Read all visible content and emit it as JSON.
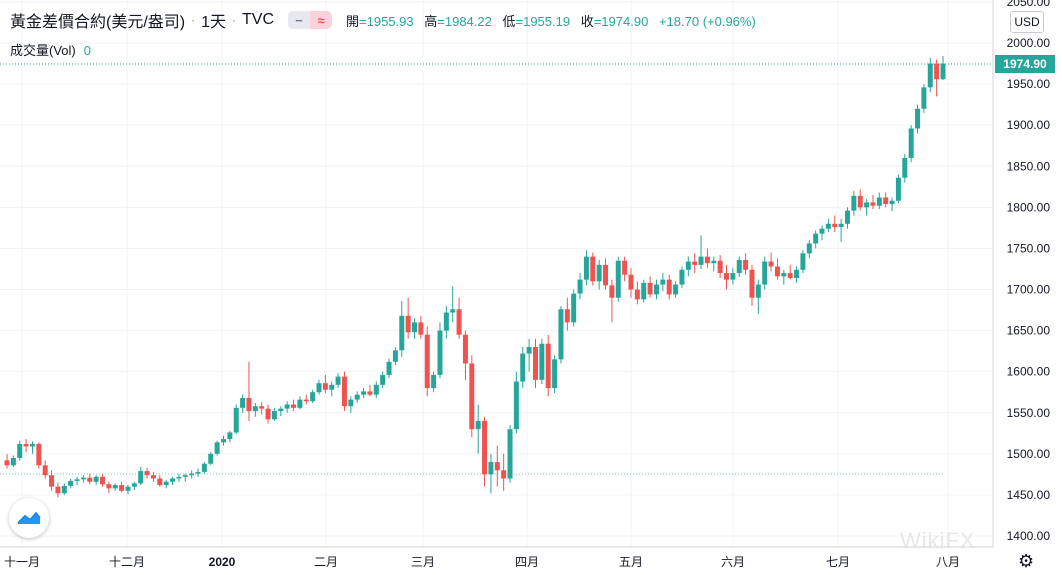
{
  "header": {
    "symbol": "黃金差價合約(美元/盎司)",
    "interval": "1天",
    "source": "TVC",
    "ohlc": {
      "open_label": "開",
      "open": "=1955.93",
      "high_label": "高",
      "high": "=1984.22",
      "low_label": "低",
      "low": "=1955.19",
      "close_label": "收",
      "close": "=1974.90",
      "change": "+18.70 (+0.96%)"
    },
    "icons": [
      "minus-icon",
      "wave-icon"
    ]
  },
  "volume": {
    "label": "成交量(Vol)",
    "value": "0"
  },
  "currency": "USD",
  "last_price_tag": "1974.90",
  "colors": {
    "up": "#26a69a",
    "down": "#ef5350",
    "grid": "#f0f3fa",
    "text": "#131722",
    "dotted_line": "#26a69a"
  },
  "watermark": "WikiFX",
  "chart_data": {
    "type": "candlestick",
    "ylim": [
      1400,
      2025
    ],
    "y_ticks": [
      "1400.00",
      "1450.00",
      "1500.00",
      "1550.00",
      "1600.00",
      "1650.00",
      "1700.00",
      "1750.00",
      "1800.00",
      "1850.00",
      "1900.00",
      "1950.00",
      "2000.00",
      "2050.00"
    ],
    "x_ticks": [
      "十一月",
      "十二月",
      "2020",
      "二月",
      "三月",
      "四月",
      "五月",
      "六月",
      "七月",
      "八月"
    ],
    "last_close": 1974.9,
    "ref_level": 1474,
    "candles": [
      [
        1492,
        1500,
        1482,
        1486
      ],
      [
        1486,
        1498,
        1484,
        1495
      ],
      [
        1495,
        1516,
        1492,
        1512
      ],
      [
        1512,
        1518,
        1502,
        1509
      ],
      [
        1509,
        1515,
        1500,
        1512
      ],
      [
        1512,
        1514,
        1482,
        1486
      ],
      [
        1486,
        1492,
        1470,
        1474
      ],
      [
        1474,
        1480,
        1455,
        1460
      ],
      [
        1460,
        1465,
        1447,
        1452
      ],
      [
        1452,
        1464,
        1450,
        1461
      ],
      [
        1461,
        1470,
        1458,
        1467
      ],
      [
        1467,
        1472,
        1462,
        1469
      ],
      [
        1469,
        1474,
        1465,
        1471
      ],
      [
        1471,
        1476,
        1463,
        1466
      ],
      [
        1466,
        1474,
        1462,
        1472
      ],
      [
        1472,
        1475,
        1460,
        1463
      ],
      [
        1463,
        1466,
        1452,
        1458
      ],
      [
        1458,
        1464,
        1455,
        1462
      ],
      [
        1462,
        1466,
        1453,
        1455
      ],
      [
        1455,
        1462,
        1451,
        1460
      ],
      [
        1460,
        1466,
        1456,
        1464
      ],
      [
        1464,
        1484,
        1462,
        1479
      ],
      [
        1479,
        1483,
        1470,
        1474
      ],
      [
        1474,
        1478,
        1466,
        1470
      ],
      [
        1470,
        1474,
        1460,
        1462
      ],
      [
        1462,
        1468,
        1458,
        1466
      ],
      [
        1466,
        1472,
        1462,
        1470
      ],
      [
        1470,
        1476,
        1466,
        1472
      ],
      [
        1472,
        1476,
        1466,
        1474
      ],
      [
        1474,
        1480,
        1470,
        1476
      ],
      [
        1476,
        1482,
        1472,
        1478
      ],
      [
        1478,
        1490,
        1476,
        1488
      ],
      [
        1488,
        1502,
        1486,
        1500
      ],
      [
        1500,
        1516,
        1498,
        1514
      ],
      [
        1514,
        1522,
        1510,
        1518
      ],
      [
        1518,
        1528,
        1514,
        1526
      ],
      [
        1526,
        1560,
        1524,
        1556
      ],
      [
        1556,
        1572,
        1550,
        1568
      ],
      [
        1568,
        1612,
        1540,
        1552
      ],
      [
        1552,
        1562,
        1545,
        1558
      ],
      [
        1558,
        1563,
        1548,
        1555
      ],
      [
        1555,
        1560,
        1537,
        1542
      ],
      [
        1542,
        1556,
        1540,
        1552
      ],
      [
        1552,
        1558,
        1546,
        1555
      ],
      [
        1555,
        1564,
        1550,
        1560
      ],
      [
        1560,
        1566,
        1552,
        1556
      ],
      [
        1556,
        1570,
        1554,
        1566
      ],
      [
        1566,
        1572,
        1560,
        1564
      ],
      [
        1564,
        1578,
        1562,
        1575
      ],
      [
        1575,
        1590,
        1572,
        1586
      ],
      [
        1586,
        1596,
        1574,
        1578
      ],
      [
        1578,
        1588,
        1570,
        1584
      ],
      [
        1584,
        1598,
        1580,
        1594
      ],
      [
        1594,
        1600,
        1552,
        1558
      ],
      [
        1558,
        1570,
        1550,
        1566
      ],
      [
        1566,
        1576,
        1562,
        1572
      ],
      [
        1572,
        1580,
        1568,
        1576
      ],
      [
        1576,
        1584,
        1570,
        1572
      ],
      [
        1572,
        1588,
        1568,
        1584
      ],
      [
        1584,
        1600,
        1580,
        1596
      ],
      [
        1596,
        1616,
        1592,
        1612
      ],
      [
        1612,
        1630,
        1608,
        1626
      ],
      [
        1626,
        1686,
        1618,
        1668
      ],
      [
        1668,
        1690,
        1640,
        1648
      ],
      [
        1648,
        1665,
        1640,
        1660
      ],
      [
        1660,
        1668,
        1640,
        1645
      ],
      [
        1645,
        1655,
        1570,
        1580
      ],
      [
        1580,
        1600,
        1575,
        1596
      ],
      [
        1596,
        1660,
        1592,
        1650
      ],
      [
        1650,
        1680,
        1640,
        1672
      ],
      [
        1672,
        1704,
        1660,
        1676
      ],
      [
        1676,
        1690,
        1640,
        1645
      ],
      [
        1645,
        1650,
        1590,
        1610
      ],
      [
        1610,
        1620,
        1520,
        1530
      ],
      [
        1530,
        1560,
        1500,
        1540
      ],
      [
        1540,
        1545,
        1460,
        1475
      ],
      [
        1475,
        1500,
        1452,
        1490
      ],
      [
        1490,
        1510,
        1460,
        1480
      ],
      [
        1480,
        1500,
        1455,
        1470
      ],
      [
        1470,
        1535,
        1465,
        1530
      ],
      [
        1530,
        1600,
        1525,
        1588
      ],
      [
        1588,
        1630,
        1580,
        1622
      ],
      [
        1622,
        1640,
        1600,
        1630
      ],
      [
        1630,
        1640,
        1580,
        1590
      ],
      [
        1590,
        1640,
        1585,
        1634
      ],
      [
        1634,
        1645,
        1570,
        1580
      ],
      [
        1580,
        1620,
        1574,
        1615
      ],
      [
        1615,
        1680,
        1610,
        1676
      ],
      [
        1676,
        1690,
        1650,
        1660
      ],
      [
        1660,
        1700,
        1655,
        1695
      ],
      [
        1695,
        1720,
        1688,
        1712
      ],
      [
        1712,
        1748,
        1705,
        1740
      ],
      [
        1740,
        1745,
        1705,
        1710
      ],
      [
        1710,
        1736,
        1700,
        1730
      ],
      [
        1730,
        1738,
        1700,
        1705
      ],
      [
        1705,
        1712,
        1660,
        1690
      ],
      [
        1690,
        1740,
        1685,
        1735
      ],
      [
        1735,
        1740,
        1710,
        1718
      ],
      [
        1718,
        1726,
        1690,
        1700
      ],
      [
        1700,
        1710,
        1682,
        1688
      ],
      [
        1688,
        1712,
        1684,
        1708
      ],
      [
        1708,
        1716,
        1690,
        1694
      ],
      [
        1694,
        1712,
        1688,
        1706
      ],
      [
        1706,
        1720,
        1698,
        1712
      ],
      [
        1712,
        1718,
        1688,
        1694
      ],
      [
        1694,
        1710,
        1690,
        1706
      ],
      [
        1706,
        1728,
        1702,
        1724
      ],
      [
        1724,
        1740,
        1716,
        1734
      ],
      [
        1734,
        1744,
        1720,
        1730
      ],
      [
        1730,
        1766,
        1725,
        1740
      ],
      [
        1740,
        1750,
        1726,
        1732
      ],
      [
        1732,
        1740,
        1722,
        1735
      ],
      [
        1735,
        1742,
        1714,
        1720
      ],
      [
        1720,
        1730,
        1700,
        1712
      ],
      [
        1712,
        1726,
        1706,
        1720
      ],
      [
        1720,
        1740,
        1715,
        1736
      ],
      [
        1736,
        1744,
        1718,
        1724
      ],
      [
        1724,
        1730,
        1680,
        1690
      ],
      [
        1690,
        1712,
        1670,
        1706
      ],
      [
        1706,
        1740,
        1700,
        1734
      ],
      [
        1734,
        1745,
        1722,
        1728
      ],
      [
        1728,
        1738,
        1712,
        1716
      ],
      [
        1716,
        1724,
        1706,
        1720
      ],
      [
        1720,
        1730,
        1712,
        1714
      ],
      [
        1714,
        1728,
        1708,
        1724
      ],
      [
        1724,
        1748,
        1720,
        1744
      ],
      [
        1744,
        1760,
        1738,
        1756
      ],
      [
        1756,
        1772,
        1750,
        1768
      ],
      [
        1768,
        1778,
        1760,
        1774
      ],
      [
        1774,
        1786,
        1770,
        1780
      ],
      [
        1780,
        1790,
        1770,
        1776
      ],
      [
        1776,
        1786,
        1758,
        1780
      ],
      [
        1780,
        1800,
        1774,
        1796
      ],
      [
        1796,
        1820,
        1790,
        1814
      ],
      [
        1814,
        1822,
        1796,
        1800
      ],
      [
        1800,
        1810,
        1790,
        1806
      ],
      [
        1806,
        1815,
        1798,
        1802
      ],
      [
        1802,
        1818,
        1798,
        1812
      ],
      [
        1812,
        1818,
        1800,
        1804
      ],
      [
        1804,
        1812,
        1795,
        1808
      ],
      [
        1808,
        1840,
        1805,
        1836
      ],
      [
        1836,
        1865,
        1830,
        1860
      ],
      [
        1860,
        1900,
        1855,
        1896
      ],
      [
        1896,
        1925,
        1890,
        1920
      ],
      [
        1920,
        1950,
        1915,
        1946
      ],
      [
        1946,
        1982,
        1940,
        1975
      ],
      [
        1975,
        1980,
        1935,
        1956
      ],
      [
        1956,
        1984,
        1955,
        1975
      ]
    ]
  }
}
